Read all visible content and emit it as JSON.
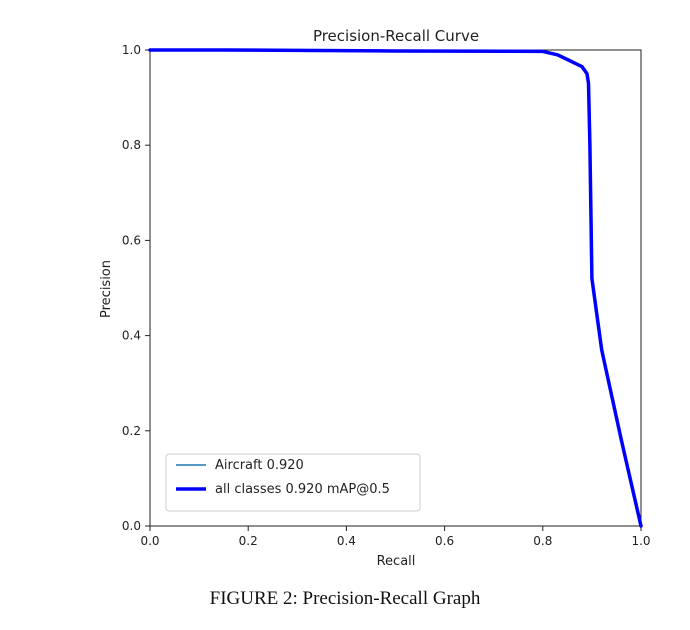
{
  "chart_data": {
    "type": "line",
    "title": "Precision-Recall Curve",
    "xlabel": "Recall",
    "ylabel": "Precision",
    "xlim": [
      0,
      1
    ],
    "ylim": [
      0,
      1
    ],
    "xticks": [
      "0.0",
      "0.2",
      "0.4",
      "0.6",
      "0.8",
      "1.0"
    ],
    "yticks": [
      "0.0",
      "0.2",
      "0.4",
      "0.6",
      "0.8",
      "1.0"
    ],
    "grid": false,
    "legend_position": "lower-left",
    "series": [
      {
        "name": "Aircraft 0.920",
        "color": "#1f77b4",
        "style": "thin",
        "x": [
          0.0,
          0.15,
          0.5,
          0.8,
          0.83,
          0.85,
          0.87,
          0.88,
          0.89,
          0.893,
          0.896,
          0.9,
          0.92,
          0.96,
          1.0
        ],
        "y": [
          1.0,
          1.0,
          0.998,
          0.997,
          0.99,
          0.98,
          0.97,
          0.965,
          0.95,
          0.93,
          0.8,
          0.52,
          0.37,
          0.18,
          0.0
        ]
      },
      {
        "name": "all classes 0.920 mAP@0.5",
        "color": "#0000ff",
        "style": "thick",
        "x": [
          0.0,
          0.15,
          0.5,
          0.8,
          0.83,
          0.85,
          0.87,
          0.88,
          0.89,
          0.893,
          0.896,
          0.9,
          0.92,
          0.96,
          1.0
        ],
        "y": [
          1.0,
          1.0,
          0.998,
          0.997,
          0.99,
          0.98,
          0.97,
          0.965,
          0.95,
          0.93,
          0.8,
          0.52,
          0.37,
          0.18,
          0.0
        ]
      }
    ]
  },
  "caption": "FIGURE 2: Precision-Recall Graph"
}
